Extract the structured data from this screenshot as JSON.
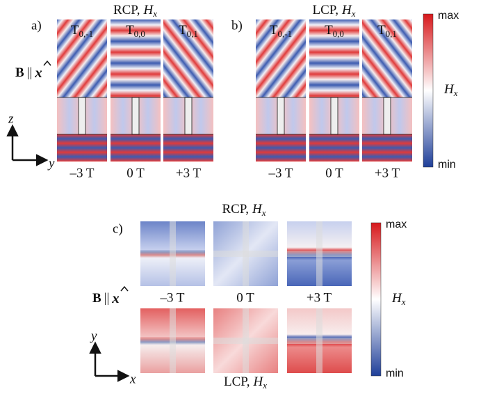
{
  "panel_a": {
    "label": "a)",
    "polarization": "RCP,",
    "field": "H",
    "field_sub": "x",
    "orders": [
      {
        "base": "T",
        "sub": "0,-1"
      },
      {
        "base": "T",
        "sub": "0,0"
      },
      {
        "base": "T",
        "sub": "0,1"
      }
    ],
    "fields": [
      "–3 T",
      "0 T",
      "+3 T"
    ]
  },
  "panel_b": {
    "label": "b)",
    "polarization": "LCP,",
    "field": "H",
    "field_sub": "x",
    "orders": [
      {
        "base": "T",
        "sub": "0,-1"
      },
      {
        "base": "T",
        "sub": "0,0"
      },
      {
        "base": "T",
        "sub": "0,1"
      }
    ],
    "fields": [
      "–3 T",
      "0 T",
      "+3 T"
    ]
  },
  "colorbar_ab": {
    "max": "max",
    "min": "min",
    "field": "H",
    "field_sub": "x"
  },
  "b_label_ab": {
    "symbol": "B",
    "relation": "||",
    "direction": "x"
  },
  "axes_ab": {
    "vertical": "z",
    "horizontal": "y"
  },
  "panel_c": {
    "label": "c)",
    "top_title": {
      "polarization": "RCP,",
      "field": "H",
      "field_sub": "x"
    },
    "bottom_title": {
      "polarization": "LCP,",
      "field": "H",
      "field_sub": "x"
    },
    "fields": [
      "–3 T",
      "0 T",
      "+3 T"
    ]
  },
  "colorbar_c": {
    "max": "max",
    "min": "min",
    "field": "H",
    "field_sub": "x"
  },
  "b_label_c": {
    "symbol": "B",
    "relation": "||",
    "direction": "x"
  },
  "axes_c": {
    "vertical": "y",
    "horizontal": "x"
  }
}
